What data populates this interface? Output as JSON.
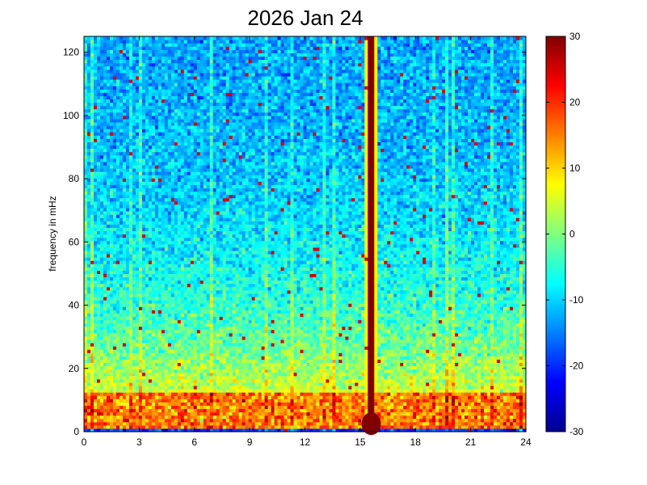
{
  "chart_data": {
    "type": "heatmap",
    "title": "2026 Jan 24",
    "xlabel": "",
    "ylabel": "frequency in mHz",
    "xlim": [
      0,
      24
    ],
    "ylim": [
      0,
      125
    ],
    "xticks": [
      0,
      3,
      6,
      9,
      12,
      15,
      18,
      21,
      24
    ],
    "yticks": [
      0,
      20,
      40,
      60,
      80,
      100,
      120
    ],
    "colorbar": {
      "range": [
        -30,
        30
      ],
      "ticks": [
        -30,
        -20,
        -10,
        0,
        10,
        20,
        30
      ],
      "colormap": "jet",
      "colors": [
        "#00008f",
        "#0000ff",
        "#0080ff",
        "#00ffff",
        "#80ff80",
        "#ffff00",
        "#ff8000",
        "#ff0000",
        "#800000"
      ]
    },
    "annotations": {
      "vertical_band": {
        "x_center": 15.6,
        "width": 0.35,
        "value": 30
      },
      "low_frequency_band": {
        "y_max": 12,
        "approx_value": 15
      }
    },
    "trend": {
      "description_free": true,
      "value_at_low_freq": 12,
      "value_at_high_freq": -14
    }
  }
}
